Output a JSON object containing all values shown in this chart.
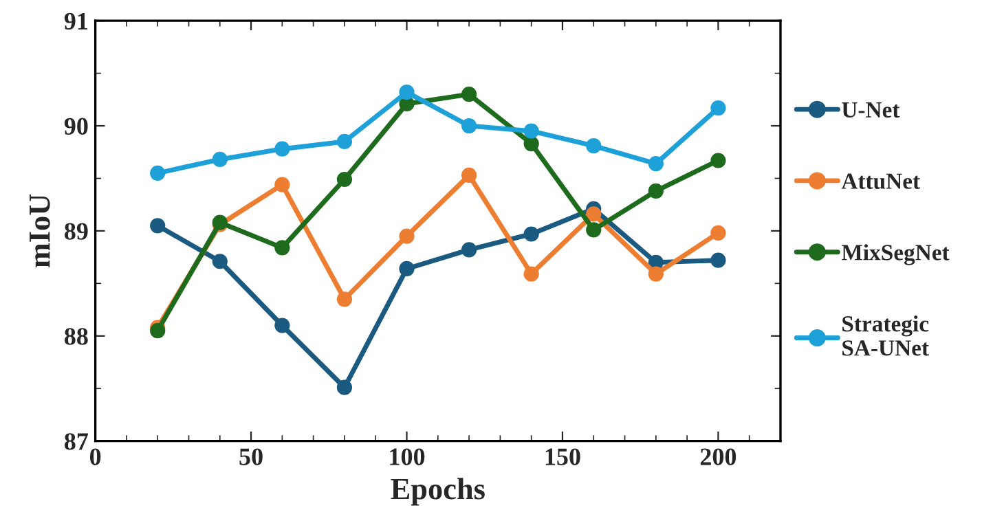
{
  "chart_data": {
    "type": "line",
    "xlabel": "Epochs",
    "ylabel": "mIoU",
    "x": [
      20,
      40,
      60,
      80,
      100,
      120,
      140,
      160,
      180,
      200
    ],
    "series": [
      {
        "name": "U-Net",
        "color": "#1a5a80",
        "values": [
          89.05,
          88.71,
          88.1,
          87.51,
          88.64,
          88.82,
          88.97,
          89.21,
          88.7,
          88.72
        ]
      },
      {
        "name": "AttuNet",
        "color": "#ed7d31",
        "values": [
          88.08,
          89.06,
          89.44,
          88.35,
          88.95,
          89.53,
          88.59,
          89.16,
          88.59,
          88.98
        ]
      },
      {
        "name": "MixSegNet",
        "color": "#1e6b1e",
        "values": [
          88.05,
          89.08,
          88.84,
          89.49,
          90.21,
          90.3,
          89.83,
          89.01,
          89.38,
          89.67
        ]
      },
      {
        "name": "Strategic\nSA-UNet",
        "color": "#1ea0d8",
        "values": [
          89.55,
          89.68,
          89.78,
          89.85,
          90.32,
          90.0,
          89.95,
          89.81,
          89.64,
          90.17
        ]
      }
    ],
    "xlim": [
      0,
      220
    ],
    "xticks": [
      0,
      50,
      100,
      150,
      200
    ],
    "ylim": [
      87,
      91
    ],
    "yticks": [
      87,
      88,
      89,
      90,
      91
    ],
    "marker": "circle",
    "line_style": "solid",
    "legend": "right",
    "grid": false
  }
}
